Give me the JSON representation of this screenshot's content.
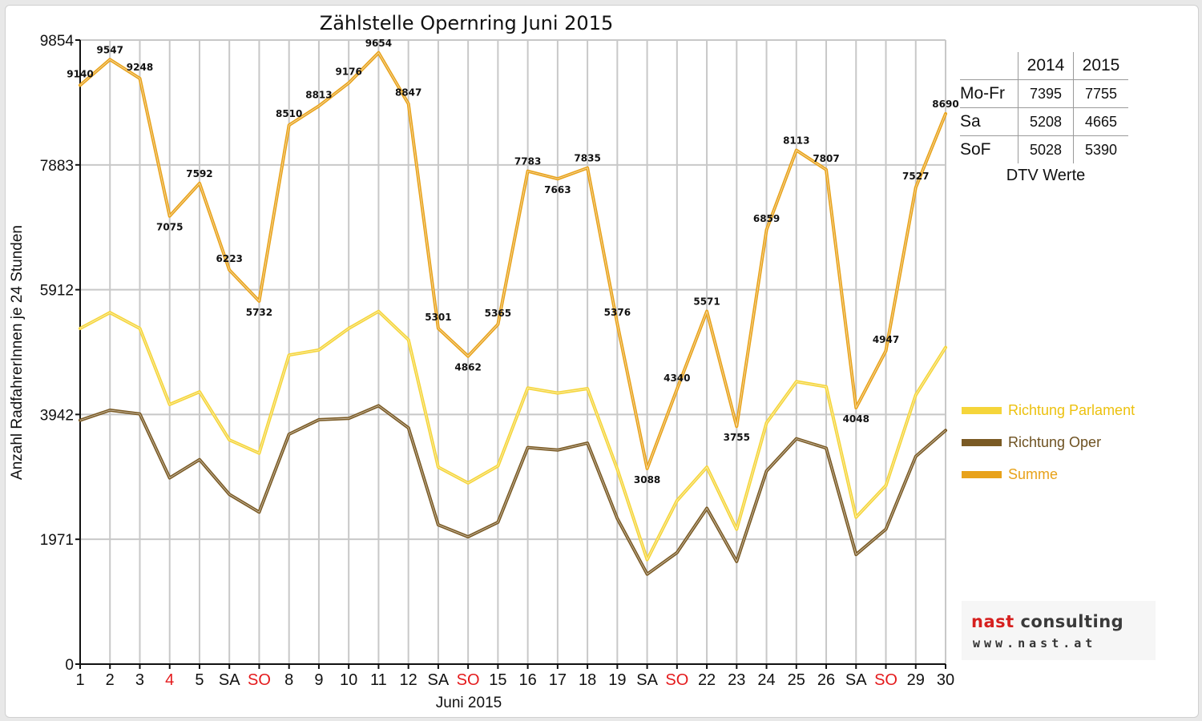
{
  "chart_data": {
    "type": "line",
    "title": "Zählstelle Opernring Juni 2015",
    "xlabel": "Juni 2015",
    "ylabel": "Anzahl RadfahrerInnen je 24 Stunden",
    "ylim": [
      0,
      9854
    ],
    "yticks": [
      "0",
      "1971",
      "3942",
      "5912",
      "7883",
      "9854"
    ],
    "ytick_values": [
      0,
      1971,
      3942,
      5912,
      7883,
      9854
    ],
    "categories": [
      "1",
      "2",
      "3",
      "4",
      "5",
      "SA",
      "SO",
      "8",
      "9",
      "10",
      "11",
      "12",
      "SA",
      "SO",
      "15",
      "16",
      "17",
      "18",
      "19",
      "SA",
      "SO",
      "22",
      "23",
      "24",
      "25",
      "26",
      "SA",
      "SO",
      "29",
      "30"
    ],
    "category_colors": [
      "#111111",
      "#111111",
      "#111111",
      "#e41a1c",
      "#111111",
      "#111111",
      "#e41a1c",
      "#111111",
      "#111111",
      "#111111",
      "#111111",
      "#111111",
      "#111111",
      "#e41a1c",
      "#111111",
      "#111111",
      "#111111",
      "#111111",
      "#111111",
      "#111111",
      "#e41a1c",
      "#111111",
      "#111111",
      "#111111",
      "#111111",
      "#111111",
      "#111111",
      "#e41a1c",
      "#111111",
      "#111111"
    ],
    "series": [
      {
        "name": "Richtung Parlament",
        "color": "#f5d53a",
        "values": [
          5300,
          5550,
          5300,
          4100,
          4300,
          3540,
          3330,
          4880,
          4960,
          5300,
          5570,
          5120,
          3110,
          2860,
          3130,
          4360,
          4280,
          4350,
          3080,
          1650,
          2580,
          3110,
          2130,
          3810,
          4460,
          4380,
          2320,
          2820,
          4250,
          5000
        ]
      },
      {
        "name": "Richtung Oper",
        "color": "#7a5a24",
        "values": [
          3850,
          4010,
          3950,
          2940,
          3230,
          2680,
          2400,
          3630,
          3860,
          3880,
          4080,
          3730,
          2200,
          2010,
          2240,
          3420,
          3380,
          3490,
          2300,
          1420,
          1760,
          2460,
          1620,
          3050,
          3560,
          3410,
          1730,
          2130,
          3280,
          3690
        ]
      },
      {
        "name": "Summe",
        "color": "#e8a21a",
        "values": [
          9140,
          9547,
          9248,
          7075,
          7592,
          6223,
          5732,
          8510,
          8813,
          9176,
          9654,
          8847,
          5301,
          4862,
          5365,
          7783,
          7663,
          7835,
          5376,
          3088,
          4340,
          5571,
          3755,
          6859,
          8113,
          7807,
          4048,
          4947,
          7527,
          8690
        ],
        "data_labels": [
          "9140",
          "9547",
          "9248",
          "7075",
          "7592",
          "6223",
          "5732",
          "8510",
          "8813",
          "9176",
          "9654",
          "8847",
          "5301",
          "4862",
          "5365",
          "7783",
          "7663",
          "7835",
          "5376",
          "3088",
          "4340",
          "5571",
          "3755",
          "6859",
          "8113",
          "7807",
          "4048",
          "4947",
          "7527",
          "8690"
        ]
      }
    ],
    "grid": true,
    "legend_position": "right"
  },
  "dtv_table": {
    "columns": [
      "",
      "2014",
      "2015"
    ],
    "rows": [
      {
        "label": "Mo-Fr",
        "v2014": "7395",
        "v2015": "7755"
      },
      {
        "label": "Sa",
        "v2014": "5208",
        "v2015": "4665"
      },
      {
        "label": "SoF",
        "v2014": "5028",
        "v2015": "5390"
      }
    ],
    "caption": "DTV Werte"
  },
  "legend": [
    {
      "label": "Richtung Parlament",
      "color": "#f5d53a",
      "text_color": "#ecc10f"
    },
    {
      "label": "Richtung Oper",
      "color": "#7a5a24",
      "text_color": "#6e5222"
    },
    {
      "label": "Summe",
      "color": "#e8a21a",
      "text_color": "#e8a21a"
    }
  ],
  "logo": {
    "name_part1": "nast",
    "name_part2": " consulting",
    "url": "www.nast.at"
  }
}
